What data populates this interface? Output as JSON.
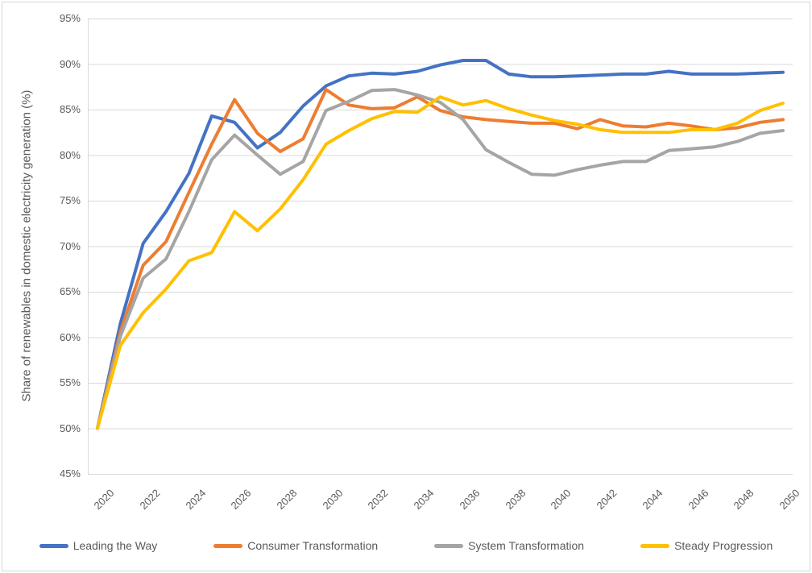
{
  "chart_data": {
    "type": "line",
    "title": "",
    "xlabel": "",
    "ylabel": "Share of renewables in domestic electricity generation (%)",
    "ylim": [
      45,
      95
    ],
    "y_tick_step": 5,
    "y_tick_labels": [
      "95%",
      "90%",
      "85%",
      "80%",
      "75%",
      "70%",
      "65%",
      "60%",
      "55%",
      "50%",
      "45%"
    ],
    "x": [
      2020,
      2021,
      2022,
      2023,
      2024,
      2025,
      2026,
      2027,
      2028,
      2029,
      2030,
      2031,
      2032,
      2033,
      2034,
      2035,
      2036,
      2037,
      2038,
      2039,
      2040,
      2041,
      2042,
      2043,
      2044,
      2045,
      2046,
      2047,
      2048,
      2049,
      2050
    ],
    "x_tick_labels": [
      "2020",
      "2022",
      "2024",
      "2026",
      "2028",
      "2030",
      "2032",
      "2034",
      "2036",
      "2038",
      "2040",
      "2042",
      "2044",
      "2046",
      "2048",
      "2050"
    ],
    "grid": "horizontal",
    "legend_position": "bottom",
    "series": [
      {
        "name": "Leading the Way",
        "color": "#4472C4",
        "values": [
          50.0,
          61.5,
          70.3,
          73.8,
          78.0,
          84.3,
          83.6,
          80.8,
          82.5,
          85.4,
          87.6,
          88.7,
          89.0,
          88.9,
          89.2,
          89.9,
          90.4,
          90.4,
          88.9,
          88.6,
          88.6,
          88.7,
          88.8,
          88.9,
          88.9,
          89.2,
          88.9,
          88.9,
          88.9,
          89.0,
          89.1
        ]
      },
      {
        "name": "Consumer Transformation",
        "color": "#ED7D31",
        "values": [
          50.0,
          60.6,
          67.9,
          70.5,
          75.9,
          81.2,
          86.1,
          82.4,
          80.4,
          81.8,
          87.2,
          85.5,
          85.1,
          85.2,
          86.4,
          84.9,
          84.2,
          83.9,
          83.7,
          83.5,
          83.5,
          82.9,
          83.9,
          83.2,
          83.1,
          83.5,
          83.2,
          82.8,
          83.0,
          83.6,
          83.9
        ]
      },
      {
        "name": "System Transformation",
        "color": "#A5A5A5",
        "values": [
          50.0,
          60.1,
          66.5,
          68.6,
          73.8,
          79.5,
          82.2,
          80.0,
          77.9,
          79.3,
          84.9,
          85.9,
          87.1,
          87.2,
          86.6,
          85.8,
          83.9,
          80.6,
          79.2,
          77.9,
          77.8,
          78.4,
          78.9,
          79.3,
          79.3,
          80.5,
          80.7,
          80.9,
          81.5,
          82.4,
          82.7
        ]
      },
      {
        "name": "Steady Progression",
        "color": "#FFC000",
        "values": [
          50.0,
          59.1,
          62.7,
          65.3,
          68.4,
          69.3,
          73.8,
          71.7,
          74.1,
          77.3,
          81.2,
          82.7,
          84.0,
          84.8,
          84.7,
          86.4,
          85.5,
          86.0,
          85.1,
          84.4,
          83.8,
          83.4,
          82.8,
          82.5,
          82.5,
          82.5,
          82.8,
          82.8,
          83.5,
          84.9,
          85.7
        ]
      }
    ]
  }
}
